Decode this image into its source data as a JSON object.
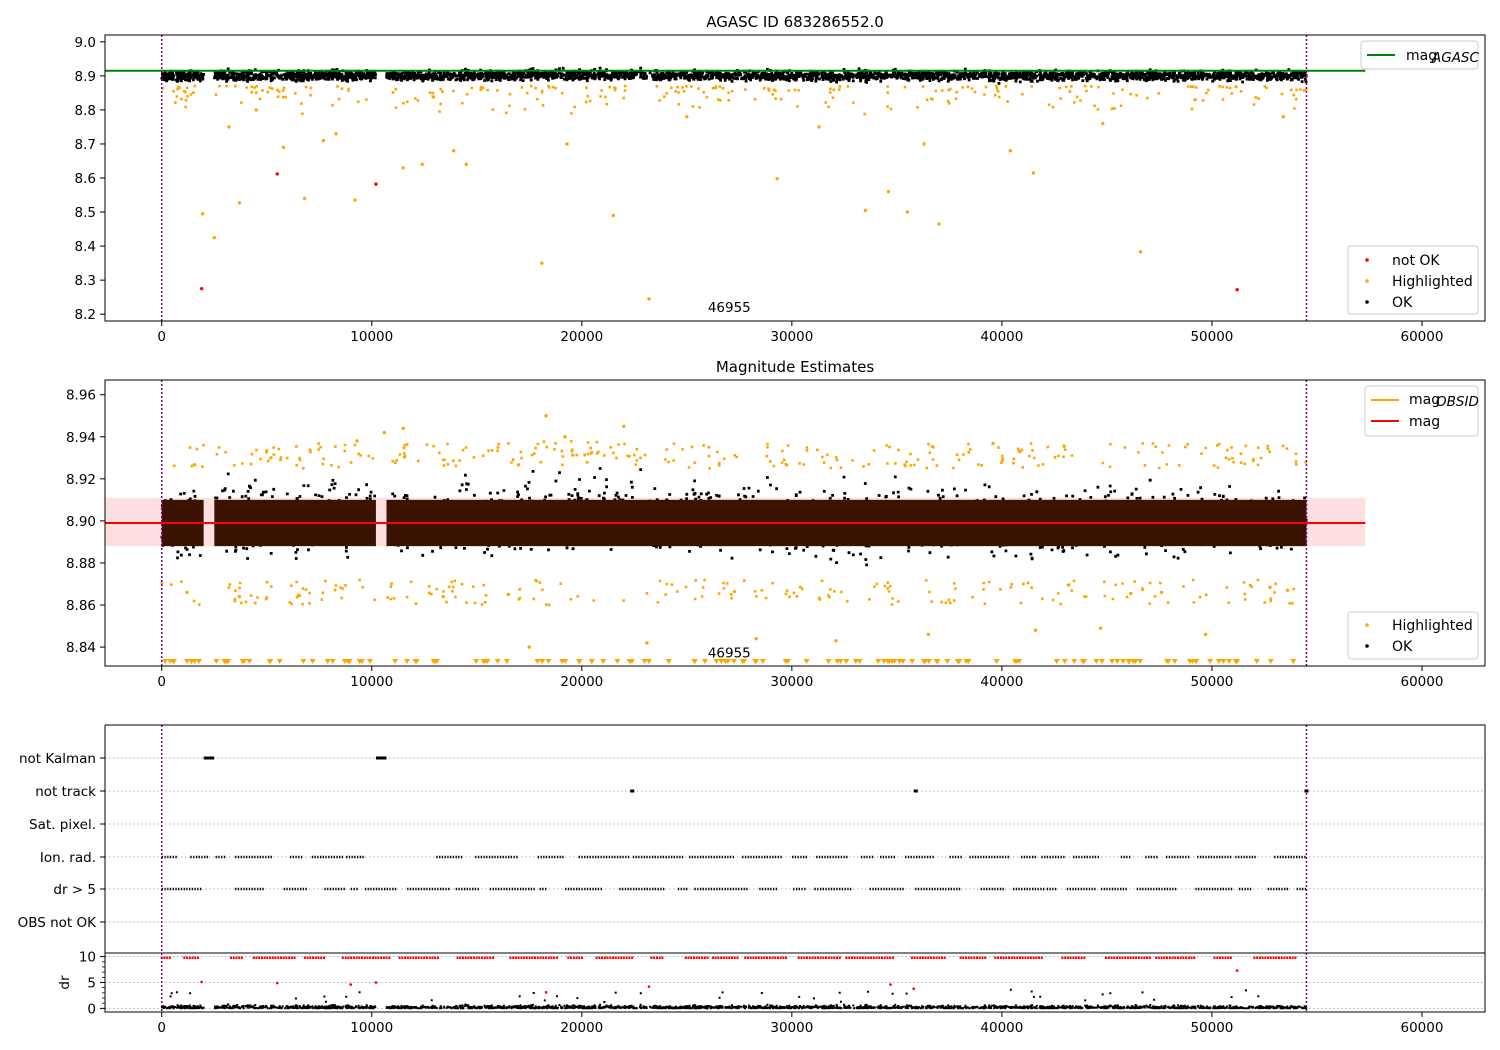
{
  "figure_title": "AGASC ID 683286552.0",
  "chart_data": [
    {
      "type": "scatter",
      "title": "AGASC ID 683286552.0",
      "xlim": [
        -2700,
        63000
      ],
      "ylim": [
        8.18,
        9.02
      ],
      "x_ticks": [
        0,
        10000,
        20000,
        30000,
        40000,
        50000,
        60000
      ],
      "y_ticks": [
        8.2,
        8.3,
        8.4,
        8.5,
        8.6,
        8.7,
        8.8,
        8.9,
        9.0
      ],
      "y_tick_labels": [
        "8.2",
        "8.3",
        "8.4",
        "8.5",
        "8.6",
        "8.7",
        "8.8",
        "8.9",
        "9.0"
      ],
      "x_tick_labels": [
        "0",
        "10000",
        "20000",
        "30000",
        "40000",
        "50000",
        "60000"
      ],
      "vlines": [
        0,
        54500
      ],
      "annotation": {
        "text": "46955",
        "x": 26000,
        "y": 8.2
      },
      "reference_lines": [
        {
          "name": "mag_AGASC",
          "label_main": "mag",
          "label_sub": "AGASC",
          "y": 8.915,
          "color": "#008000"
        }
      ],
      "ok_band": {
        "x_range": [
          0,
          54500
        ],
        "y_range": [
          8.878,
          8.922
        ]
      },
      "series": [
        {
          "name": "not OK",
          "color": "#ff0000",
          "points": [
            [
              1900,
              8.275
            ],
            [
              5500,
              8.612
            ],
            [
              10200,
              8.582
            ],
            [
              51200,
              8.272
            ]
          ]
        },
        {
          "name": "Highlighted",
          "color": "#ffa500",
          "points": [
            [
              1950,
              8.495
            ],
            [
              2500,
              8.425
            ],
            [
              3700,
              8.527
            ],
            [
              5800,
              8.69
            ],
            [
              6800,
              8.54
            ],
            [
              7700,
              8.71
            ],
            [
              9200,
              8.535
            ],
            [
              11500,
              8.63
            ],
            [
              12400,
              8.64
            ],
            [
              14500,
              8.64
            ],
            [
              18100,
              8.35
            ],
            [
              21500,
              8.49
            ],
            [
              23200,
              8.245
            ],
            [
              29300,
              8.598
            ],
            [
              33500,
              8.505
            ],
            [
              34600,
              8.56
            ],
            [
              35500,
              8.5
            ],
            [
              37000,
              8.465
            ],
            [
              41500,
              8.615
            ],
            [
              46600,
              8.383
            ],
            [
              3200,
              8.75
            ],
            [
              4500,
              8.8
            ],
            [
              8300,
              8.73
            ],
            [
              13900,
              8.68
            ],
            [
              19300,
              8.7
            ],
            [
              25000,
              8.78
            ],
            [
              31300,
              8.75
            ],
            [
              36300,
              8.7
            ],
            [
              40400,
              8.68
            ],
            [
              44800,
              8.76
            ],
            [
              49200,
              8.83
            ],
            [
              53400,
              8.78
            ]
          ]
        },
        {
          "name": "OK",
          "color": "#000000"
        }
      ],
      "legend": {
        "placement": "lower-right",
        "entries": [
          "not OK",
          "Highlighted",
          "OK"
        ]
      }
    },
    {
      "type": "scatter",
      "title": "Magnitude Estimates",
      "xlim": [
        -2700,
        63000
      ],
      "ylim": [
        8.831,
        8.967
      ],
      "x_ticks": [
        0,
        10000,
        20000,
        30000,
        40000,
        50000,
        60000
      ],
      "y_ticks": [
        8.84,
        8.86,
        8.88,
        8.9,
        8.92,
        8.94,
        8.96
      ],
      "y_tick_labels": [
        "8.84",
        "8.86",
        "8.88",
        "8.90",
        "8.92",
        "8.94",
        "8.96"
      ],
      "x_tick_labels": [
        "0",
        "10000",
        "20000",
        "30000",
        "40000",
        "50000",
        "60000"
      ],
      "vlines": [
        0,
        54500
      ],
      "annotation": {
        "text": "46955",
        "x": 26000,
        "y": 8.835
      },
      "reference_lines": [
        {
          "name": "mag_OBSID",
          "label_main": "mag",
          "label_sub": "OBSID",
          "color": "#ffa500"
        },
        {
          "name": "mag",
          "label_main": "mag",
          "y": 8.899,
          "color": "#ff0000"
        }
      ],
      "mag_band": {
        "y_range": [
          8.888,
          8.911
        ],
        "x_range": [
          -2700,
          57300
        ],
        "color": "#ffcccc"
      },
      "ok_band": {
        "x_range": [
          0,
          54500
        ],
        "y_range": [
          8.876,
          8.924
        ]
      },
      "series": [
        {
          "name": "Highlighted",
          "color": "#ffa500",
          "points": [
            [
              18300,
              8.95
            ],
            [
              19200,
              8.94
            ],
            [
              22000,
              8.945
            ],
            [
              10600,
              8.942
            ],
            [
              11500,
              8.944
            ],
            [
              9300,
              8.938
            ],
            [
              17500,
              8.84
            ],
            [
              23100,
              8.842
            ],
            [
              28300,
              8.844
            ],
            [
              32100,
              8.843
            ],
            [
              36500,
              8.846
            ],
            [
              41600,
              8.848
            ],
            [
              44700,
              8.849
            ],
            [
              49700,
              8.846
            ],
            [
              1200,
              8.866
            ],
            [
              3700,
              8.864
            ],
            [
              13400,
              8.864
            ],
            [
              16500,
              8.865
            ],
            [
              47600,
              8.866
            ],
            [
              53600,
              8.867
            ]
          ]
        },
        {
          "name": "OK",
          "color": "#000000"
        }
      ],
      "legend": {
        "placement": "lower-right",
        "entries": [
          "Highlighted",
          "OK"
        ]
      }
    },
    {
      "type": "scatter",
      "title": "",
      "xlim": [
        -2700,
        63000
      ],
      "categories": [
        "not Kalman",
        "not track",
        "Sat. pixel.",
        "Ion. rad.",
        "dr > 5",
        "OBS not OK"
      ],
      "vlines": [
        0,
        54500
      ],
      "flags": {
        "not Kalman": [
          [
            2000,
            2500
          ],
          [
            10200,
            10700
          ]
        ],
        "not track": [
          [
            22400,
            22500
          ],
          [
            35900,
            35900
          ],
          [
            54500,
            54500
          ]
        ],
        "Sat. pixel.": [],
        "Ion. rad.": "dashed-segments",
        "dr > 5": "dashed-segments",
        "OBS not OK": []
      }
    },
    {
      "type": "scatter",
      "title": "",
      "ylabel": "dr",
      "xlim": [
        -2700,
        63000
      ],
      "ylim": [
        -0.7,
        10.7
      ],
      "y_ticks": [
        0,
        5,
        10
      ],
      "y_tick_labels": [
        "0",
        "5",
        "10"
      ],
      "x_ticks": [
        0,
        10000,
        20000,
        30000,
        40000,
        50000,
        60000
      ],
      "x_tick_labels": [
        "0",
        "10000",
        "20000",
        "30000",
        "40000",
        "50000",
        "60000"
      ],
      "vlines": [
        0,
        54500
      ],
      "series": [
        {
          "name": "dr > 5",
          "color": "#ff0000",
          "points": [
            [
              1900,
              5.1
            ],
            [
              5500,
              4.9
            ],
            [
              10200,
              5.0
            ],
            [
              51200,
              7.3
            ],
            [
              34700,
              4.6
            ],
            [
              35800,
              3.8
            ],
            [
              23200,
              4.2
            ],
            [
              18300,
              3.1
            ],
            [
              9000,
              4.6
            ]
          ]
        },
        {
          "name": "dr",
          "color": "#000000"
        }
      ]
    }
  ]
}
